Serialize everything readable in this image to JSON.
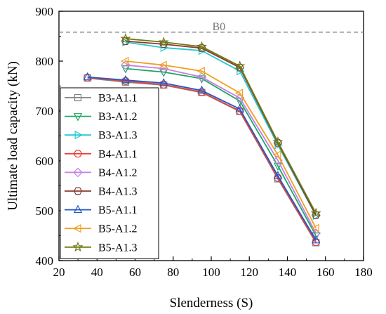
{
  "chart_data": {
    "type": "line",
    "xlabel": "Slenderness (S)",
    "ylabel": "Ultimate load capacity (kN)",
    "xlim": [
      20,
      180
    ],
    "ylim": [
      400,
      900
    ],
    "xticks": [
      20,
      40,
      60,
      80,
      100,
      120,
      140,
      160,
      180
    ],
    "yticks": [
      400,
      500,
      600,
      700,
      800,
      900
    ],
    "legend_position": "left",
    "reference_line": {
      "label": "B0",
      "y": 858,
      "style": "dashed",
      "color": "#808080"
    },
    "series": [
      {
        "name": "B3-A1.1",
        "color": "#808080",
        "marker": "square",
        "x": [
          35,
          55,
          75,
          95,
          115,
          135,
          155
        ],
        "y": [
          766,
          758,
          752,
          737,
          699,
          564,
          436
        ]
      },
      {
        "name": "B3-A1.2",
        "color": "#1aa862",
        "marker": "triangle-down",
        "x": [
          55,
          75,
          95,
          115,
          135,
          155
        ],
        "y": [
          785,
          778,
          765,
          720,
          590,
          450
        ]
      },
      {
        "name": "B3-A1.3",
        "color": "#1fc9d2",
        "marker": "triangle-right",
        "x": [
          55,
          75,
          95,
          115,
          135,
          155
        ],
        "y": [
          838,
          827,
          821,
          780,
          632,
          490
        ]
      },
      {
        "name": "B4-A1.1",
        "color": "#e8413c",
        "marker": "circle",
        "x": [
          35,
          55,
          75,
          95,
          115,
          135,
          155
        ],
        "y": [
          767,
          760,
          753,
          738,
          700,
          566,
          437
        ]
      },
      {
        "name": "B4-A1.2",
        "color": "#c77ee8",
        "marker": "diamond",
        "x": [
          55,
          75,
          95,
          115,
          135,
          155
        ],
        "y": [
          792,
          785,
          768,
          726,
          601,
          455
        ]
      },
      {
        "name": "B4-A1.3",
        "color": "#8b3a2e",
        "marker": "hexagon",
        "x": [
          55,
          75,
          95,
          115,
          135,
          155
        ],
        "y": [
          840,
          834,
          826,
          787,
          636,
          491
        ]
      },
      {
        "name": "B5-A1.1",
        "color": "#2357c6",
        "marker": "triangle-up",
        "x": [
          35,
          55,
          75,
          95,
          115,
          135,
          155
        ],
        "y": [
          768,
          762,
          756,
          741,
          704,
          570,
          441
        ]
      },
      {
        "name": "B5-A1.2",
        "color": "#f0a020",
        "marker": "triangle-left",
        "x": [
          55,
          75,
          95,
          115,
          135,
          155
        ],
        "y": [
          800,
          792,
          780,
          736,
          612,
          465
        ]
      },
      {
        "name": "B5-A1.3",
        "color": "#6f7a12",
        "marker": "star",
        "x": [
          55,
          75,
          95,
          115,
          135,
          155
        ],
        "y": [
          845,
          838,
          829,
          790,
          638,
          495
        ]
      }
    ]
  }
}
